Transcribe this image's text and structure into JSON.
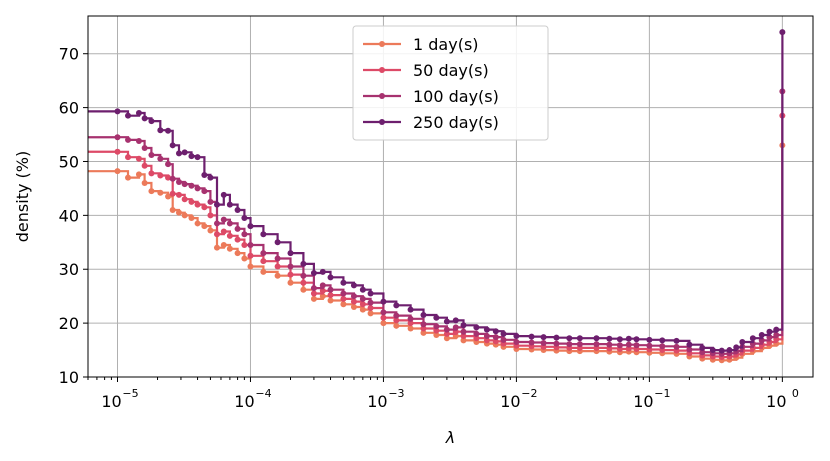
{
  "chart_data": {
    "type": "line",
    "title": "",
    "xlabel": "λ",
    "ylabel": "density (%)",
    "xscale": "log",
    "xlim": [
      6e-06,
      1.7
    ],
    "ylim": [
      10,
      77
    ],
    "grid": true,
    "legend_position": "top-center",
    "x_ticks": [
      {
        "value": 1e-05,
        "base": "10",
        "exp": "−5"
      },
      {
        "value": 0.0001,
        "base": "10",
        "exp": "−4"
      },
      {
        "value": 0.001,
        "base": "10",
        "exp": "−3"
      },
      {
        "value": 0.01,
        "base": "10",
        "exp": "−2"
      },
      {
        "value": 0.1,
        "base": "10",
        "exp": "−1"
      },
      {
        "value": 1,
        "base": "10",
        "exp": "0"
      }
    ],
    "y_ticks": [
      10,
      20,
      30,
      40,
      50,
      60,
      70
    ],
    "series": [
      {
        "name": "1 day(s)",
        "color": "#ec7a5a",
        "start_value": 48.2,
        "points": [
          [
            1e-05,
            48.2
          ],
          [
            1.2e-05,
            47
          ],
          [
            1.45e-05,
            47.6
          ],
          [
            1.6e-05,
            46
          ],
          [
            1.8e-05,
            44.5
          ],
          [
            2.1e-05,
            44.2
          ],
          [
            2.4e-05,
            43.5
          ],
          [
            2.6e-05,
            41
          ],
          [
            2.9e-05,
            40.5
          ],
          [
            3.2e-05,
            40
          ],
          [
            3.6e-05,
            39.5
          ],
          [
            4e-05,
            38.5
          ],
          [
            4.5e-05,
            38
          ],
          [
            5e-05,
            37.2
          ],
          [
            5.6e-05,
            34
          ],
          [
            6.3e-05,
            34.5
          ],
          [
            7e-05,
            33.8
          ],
          [
            8e-05,
            33
          ],
          [
            9e-05,
            32
          ],
          [
            0.0001,
            30.5
          ],
          [
            0.000125,
            29.5
          ],
          [
            0.00016,
            28.8
          ],
          [
            0.0002,
            27.5
          ],
          [
            0.00025,
            26.2
          ],
          [
            0.0003,
            24.5
          ],
          [
            0.00035,
            25
          ],
          [
            0.0004,
            24.2
          ],
          [
            0.0005,
            23.5
          ],
          [
            0.0006,
            23
          ],
          [
            0.0007,
            22.5
          ],
          [
            0.0008,
            21.8
          ],
          [
            0.001,
            20
          ],
          [
            0.00125,
            19.5
          ],
          [
            0.0016,
            19
          ],
          [
            0.002,
            18.2
          ],
          [
            0.0025,
            17.8
          ],
          [
            0.003,
            17.2
          ],
          [
            0.0035,
            17.6
          ],
          [
            0.004,
            16.8
          ],
          [
            0.005,
            16.5
          ],
          [
            0.006,
            16.2
          ],
          [
            0.007,
            16
          ],
          [
            0.008,
            15.6
          ],
          [
            0.01,
            15.2
          ],
          [
            0.013,
            15.1
          ],
          [
            0.016,
            15
          ],
          [
            0.02,
            14.9
          ],
          [
            0.025,
            14.8
          ],
          [
            0.03,
            14.8
          ],
          [
            0.04,
            14.8
          ],
          [
            0.05,
            14.7
          ],
          [
            0.06,
            14.6
          ],
          [
            0.07,
            14.7
          ],
          [
            0.08,
            14.6
          ],
          [
            0.1,
            14.5
          ],
          [
            0.125,
            14.4
          ],
          [
            0.16,
            14.3
          ],
          [
            0.2,
            13.8
          ],
          [
            0.25,
            13.4
          ],
          [
            0.3,
            13.2
          ],
          [
            0.35,
            13.1
          ],
          [
            0.4,
            13.2
          ],
          [
            0.45,
            13.6
          ],
          [
            0.5,
            14.3
          ],
          [
            0.6,
            14.8
          ],
          [
            0.7,
            15.4
          ],
          [
            0.8,
            15.8
          ],
          [
            0.9,
            16.2
          ],
          [
            1,
            53
          ]
        ]
      },
      {
        "name": "50 day(s)",
        "color": "#dd4a67",
        "start_value": 51.8,
        "points": [
          [
            1e-05,
            51.8
          ],
          [
            1.2e-05,
            50.8
          ],
          [
            1.45e-05,
            50.5
          ],
          [
            1.6e-05,
            49.2
          ],
          [
            1.8e-05,
            47.8
          ],
          [
            2.1e-05,
            47.4
          ],
          [
            2.4e-05,
            47
          ],
          [
            2.6e-05,
            44
          ],
          [
            2.9e-05,
            43.8
          ],
          [
            3.2e-05,
            43
          ],
          [
            3.6e-05,
            42.5
          ],
          [
            4e-05,
            42
          ],
          [
            4.5e-05,
            41.5
          ],
          [
            5e-05,
            40
          ],
          [
            5.6e-05,
            36.5
          ],
          [
            6.3e-05,
            37
          ],
          [
            7e-05,
            36.2
          ],
          [
            8e-05,
            35.5
          ],
          [
            9e-05,
            34.5
          ],
          [
            0.0001,
            32.5
          ],
          [
            0.000125,
            31.5
          ],
          [
            0.00016,
            30.5
          ],
          [
            0.0002,
            29
          ],
          [
            0.00025,
            27.5
          ],
          [
            0.0003,
            25.5
          ],
          [
            0.00035,
            26
          ],
          [
            0.0004,
            25.2
          ],
          [
            0.0005,
            24.5
          ],
          [
            0.0006,
            24
          ],
          [
            0.0007,
            23.5
          ],
          [
            0.0008,
            22.8
          ],
          [
            0.001,
            21
          ],
          [
            0.00125,
            20.5
          ],
          [
            0.0016,
            20
          ],
          [
            0.002,
            19
          ],
          [
            0.0025,
            18.6
          ],
          [
            0.003,
            18
          ],
          [
            0.0035,
            18.4
          ],
          [
            0.004,
            17.6
          ],
          [
            0.005,
            17.2
          ],
          [
            0.006,
            16.8
          ],
          [
            0.007,
            16.6
          ],
          [
            0.008,
            16.2
          ],
          [
            0.01,
            15.8
          ],
          [
            0.013,
            15.7
          ],
          [
            0.016,
            15.6
          ],
          [
            0.02,
            15.5
          ],
          [
            0.025,
            15.4
          ],
          [
            0.03,
            15.4
          ],
          [
            0.04,
            15.4
          ],
          [
            0.05,
            15.3
          ],
          [
            0.06,
            15.2
          ],
          [
            0.07,
            15.3
          ],
          [
            0.08,
            15.2
          ],
          [
            0.1,
            15.1
          ],
          [
            0.125,
            15
          ],
          [
            0.16,
            14.9
          ],
          [
            0.2,
            14.4
          ],
          [
            0.25,
            14
          ],
          [
            0.3,
            13.8
          ],
          [
            0.35,
            13.7
          ],
          [
            0.4,
            13.8
          ],
          [
            0.45,
            14.2
          ],
          [
            0.5,
            14.9
          ],
          [
            0.6,
            15.4
          ],
          [
            0.7,
            16
          ],
          [
            0.8,
            16.5
          ],
          [
            0.9,
            17
          ],
          [
            1,
            58.5
          ]
        ]
      },
      {
        "name": "100 day(s)",
        "color": "#a7326f",
        "start_value": 54.5,
        "points": [
          [
            1e-05,
            54.5
          ],
          [
            1.2e-05,
            54
          ],
          [
            1.45e-05,
            53.8
          ],
          [
            1.6e-05,
            52.5
          ],
          [
            1.8e-05,
            51.2
          ],
          [
            2.1e-05,
            50.5
          ],
          [
            2.4e-05,
            49.5
          ],
          [
            2.6e-05,
            46.8
          ],
          [
            2.9e-05,
            46.2
          ],
          [
            3.2e-05,
            45.8
          ],
          [
            3.6e-05,
            45.5
          ],
          [
            4e-05,
            45
          ],
          [
            4.5e-05,
            44.5
          ],
          [
            5e-05,
            42.5
          ],
          [
            5.6e-05,
            38.5
          ],
          [
            6.3e-05,
            39.2
          ],
          [
            7e-05,
            38.5
          ],
          [
            8e-05,
            37.5
          ],
          [
            9e-05,
            36.5
          ],
          [
            0.0001,
            34.5
          ],
          [
            0.000125,
            33
          ],
          [
            0.00016,
            32
          ],
          [
            0.0002,
            30.5
          ],
          [
            0.00025,
            28.8
          ],
          [
            0.0003,
            26.5
          ],
          [
            0.00035,
            27
          ],
          [
            0.0004,
            26.2
          ],
          [
            0.0005,
            25.5
          ],
          [
            0.0006,
            25
          ],
          [
            0.0007,
            24.5
          ],
          [
            0.0008,
            23.8
          ],
          [
            0.001,
            22
          ],
          [
            0.00125,
            21.4
          ],
          [
            0.0016,
            20.8
          ],
          [
            0.002,
            19.8
          ],
          [
            0.0025,
            19.4
          ],
          [
            0.003,
            18.8
          ],
          [
            0.0035,
            19.2
          ],
          [
            0.004,
            18.4
          ],
          [
            0.005,
            18
          ],
          [
            0.006,
            17.6
          ],
          [
            0.007,
            17.4
          ],
          [
            0.008,
            16.9
          ],
          [
            0.01,
            16.5
          ],
          [
            0.013,
            16.4
          ],
          [
            0.016,
            16.3
          ],
          [
            0.02,
            16.2
          ],
          [
            0.025,
            16.1
          ],
          [
            0.03,
            16.1
          ],
          [
            0.04,
            16.1
          ],
          [
            0.05,
            16
          ],
          [
            0.06,
            15.9
          ],
          [
            0.07,
            16
          ],
          [
            0.08,
            15.9
          ],
          [
            0.1,
            15.8
          ],
          [
            0.125,
            15.7
          ],
          [
            0.16,
            15.6
          ],
          [
            0.2,
            15.1
          ],
          [
            0.25,
            14.6
          ],
          [
            0.3,
            14.4
          ],
          [
            0.35,
            14.3
          ],
          [
            0.4,
            14.4
          ],
          [
            0.45,
            14.8
          ],
          [
            0.5,
            15.6
          ],
          [
            0.6,
            16.2
          ],
          [
            0.7,
            16.8
          ],
          [
            0.8,
            17.4
          ],
          [
            0.9,
            17.8
          ],
          [
            1,
            63
          ]
        ]
      },
      {
        "name": "250 day(s)",
        "color": "#6d1f6e",
        "start_value": 59.3,
        "points": [
          [
            1e-05,
            59.3
          ],
          [
            1.2e-05,
            58.5
          ],
          [
            1.45e-05,
            59
          ],
          [
            1.6e-05,
            58
          ],
          [
            1.8e-05,
            57.5
          ],
          [
            2.1e-05,
            55.8
          ],
          [
            2.4e-05,
            55.7
          ],
          [
            2.6e-05,
            53
          ],
          [
            2.9e-05,
            51.5
          ],
          [
            3.2e-05,
            51.7
          ],
          [
            3.6e-05,
            51
          ],
          [
            4e-05,
            50.8
          ],
          [
            4.5e-05,
            47.5
          ],
          [
            5e-05,
            47
          ],
          [
            5.6e-05,
            42
          ],
          [
            6.3e-05,
            43.8
          ],
          [
            7e-05,
            42
          ],
          [
            8e-05,
            41
          ],
          [
            9e-05,
            39.5
          ],
          [
            0.0001,
            38
          ],
          [
            0.000125,
            36.5
          ],
          [
            0.00016,
            35
          ],
          [
            0.0002,
            33
          ],
          [
            0.00025,
            31
          ],
          [
            0.0003,
            29.3
          ],
          [
            0.00035,
            29.5
          ],
          [
            0.0004,
            28.5
          ],
          [
            0.0005,
            27.5
          ],
          [
            0.0006,
            27
          ],
          [
            0.0007,
            26.2
          ],
          [
            0.0008,
            25.5
          ],
          [
            0.001,
            24
          ],
          [
            0.00125,
            23.3
          ],
          [
            0.0016,
            22.5
          ],
          [
            0.002,
            21.5
          ],
          [
            0.0025,
            21
          ],
          [
            0.003,
            20.3
          ],
          [
            0.0035,
            20.5
          ],
          [
            0.004,
            19.6
          ],
          [
            0.005,
            19.2
          ],
          [
            0.006,
            18.8
          ],
          [
            0.007,
            18.5
          ],
          [
            0.008,
            18
          ],
          [
            0.01,
            17.6
          ],
          [
            0.013,
            17.5
          ],
          [
            0.016,
            17.4
          ],
          [
            0.02,
            17.3
          ],
          [
            0.025,
            17.2
          ],
          [
            0.03,
            17.2
          ],
          [
            0.04,
            17.2
          ],
          [
            0.05,
            17.1
          ],
          [
            0.06,
            17
          ],
          [
            0.07,
            17.1
          ],
          [
            0.08,
            17
          ],
          [
            0.1,
            16.9
          ],
          [
            0.125,
            16.8
          ],
          [
            0.16,
            16.7
          ],
          [
            0.2,
            16
          ],
          [
            0.25,
            15.4
          ],
          [
            0.3,
            15
          ],
          [
            0.35,
            14.9
          ],
          [
            0.4,
            15
          ],
          [
            0.45,
            15.5
          ],
          [
            0.5,
            16.5
          ],
          [
            0.6,
            17.2
          ],
          [
            0.7,
            17.8
          ],
          [
            0.8,
            18.4
          ],
          [
            0.9,
            18.8
          ],
          [
            1,
            74
          ]
        ]
      }
    ]
  }
}
